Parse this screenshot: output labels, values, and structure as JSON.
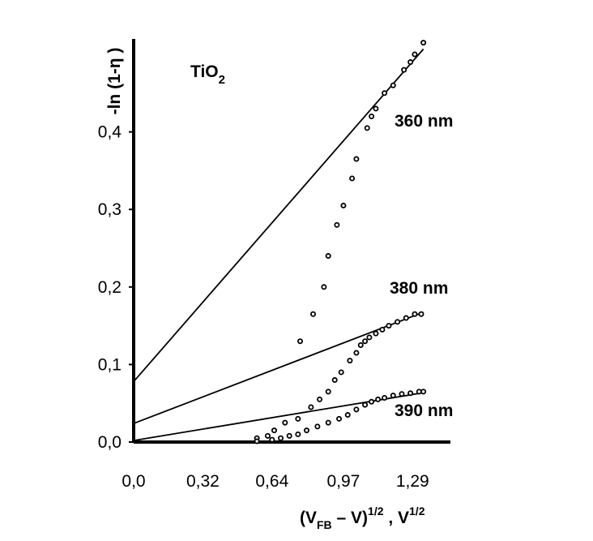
{
  "chart_data": {
    "type": "scatter",
    "title": "TiO",
    "title_sub": "2",
    "ylabel": "-ln (1-η )",
    "xlabel": {
      "main": "(V",
      "sub": "FB",
      "mid": " – V)",
      "sup1": "1/2",
      "sep": " , V",
      "sup2": "1/2"
    },
    "xlim": [
      0,
      1.45
    ],
    "ylim": [
      0,
      0.5
    ],
    "x_ticks": [
      {
        "v": 0.0,
        "label": "0,0"
      },
      {
        "v": 0.32,
        "label": "0,32"
      },
      {
        "v": 0.64,
        "label": "0,64"
      },
      {
        "v": 0.97,
        "label": "0,97"
      },
      {
        "v": 1.29,
        "label": "1,29"
      }
    ],
    "y_ticks": [
      {
        "v": 0.0,
        "label": "0,0"
      },
      {
        "v": 0.1,
        "label": "0,1"
      },
      {
        "v": 0.2,
        "label": "0,2"
      },
      {
        "v": 0.3,
        "label": "0,3"
      },
      {
        "v": 0.4,
        "label": "0,4"
      }
    ],
    "grid": false,
    "series": [
      {
        "name": "360 nm",
        "fit": {
          "intercept": 0.078,
          "slope": 0.32,
          "x_end": 1.34
        },
        "points": [
          [
            0.77,
            0.13
          ],
          [
            0.83,
            0.165
          ],
          [
            0.88,
            0.2
          ],
          [
            0.9,
            0.24
          ],
          [
            0.94,
            0.28
          ],
          [
            0.97,
            0.305
          ],
          [
            1.01,
            0.34
          ],
          [
            1.03,
            0.365
          ],
          [
            1.08,
            0.405
          ],
          [
            1.1,
            0.42
          ],
          [
            1.12,
            0.43
          ],
          [
            1.16,
            0.45
          ],
          [
            1.2,
            0.46
          ],
          [
            1.25,
            0.48
          ],
          [
            1.28,
            0.49
          ],
          [
            1.3,
            0.5
          ],
          [
            1.34,
            0.515
          ]
        ]
      },
      {
        "name": "380 nm",
        "fit": {
          "intercept": 0.024,
          "slope": 0.107,
          "x_end": 1.34
        },
        "points": [
          [
            0.57,
            0.005
          ],
          [
            0.62,
            0.008
          ],
          [
            0.65,
            0.015
          ],
          [
            0.7,
            0.025
          ],
          [
            0.76,
            0.03
          ],
          [
            0.82,
            0.045
          ],
          [
            0.86,
            0.055
          ],
          [
            0.9,
            0.065
          ],
          [
            0.93,
            0.08
          ],
          [
            0.96,
            0.09
          ],
          [
            1.0,
            0.105
          ],
          [
            1.03,
            0.115
          ],
          [
            1.05,
            0.125
          ],
          [
            1.07,
            0.13
          ],
          [
            1.09,
            0.135
          ],
          [
            1.12,
            0.14
          ],
          [
            1.15,
            0.145
          ],
          [
            1.18,
            0.15
          ],
          [
            1.22,
            0.155
          ],
          [
            1.26,
            0.16
          ],
          [
            1.3,
            0.165
          ],
          [
            1.33,
            0.165
          ]
        ]
      },
      {
        "name": "390 nm",
        "fit": {
          "intercept": 0.002,
          "slope": 0.046,
          "x_end": 1.34
        },
        "points": [
          [
            0.57,
            0.001
          ],
          [
            0.64,
            0.003
          ],
          [
            0.68,
            0.005
          ],
          [
            0.72,
            0.008
          ],
          [
            0.76,
            0.01
          ],
          [
            0.8,
            0.015
          ],
          [
            0.85,
            0.02
          ],
          [
            0.9,
            0.025
          ],
          [
            0.95,
            0.03
          ],
          [
            0.99,
            0.035
          ],
          [
            1.03,
            0.042
          ],
          [
            1.07,
            0.048
          ],
          [
            1.1,
            0.052
          ],
          [
            1.13,
            0.055
          ],
          [
            1.16,
            0.057
          ],
          [
            1.2,
            0.06
          ],
          [
            1.24,
            0.062
          ],
          [
            1.28,
            0.063
          ],
          [
            1.32,
            0.065
          ],
          [
            1.34,
            0.065
          ]
        ]
      }
    ]
  }
}
